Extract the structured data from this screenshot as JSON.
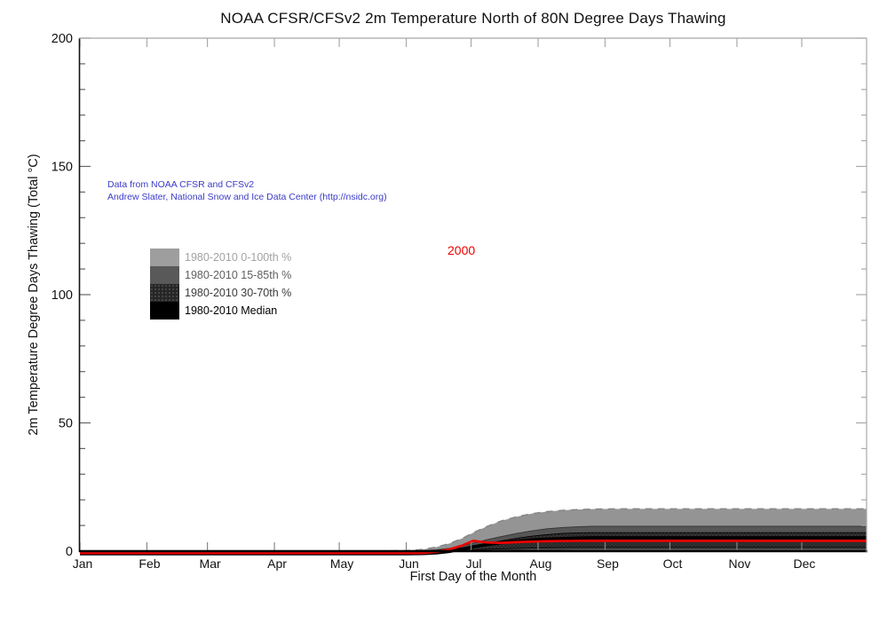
{
  "page": {
    "background": "#ffffff"
  },
  "annotations": {
    "source_line1": "Data from NOAA CFSR and CFSv2",
    "source_line2": "Andrew Slater, National Snow and Ice Data Center (http://nsidc.org)",
    "source_color": "#3b3bc8",
    "year_label": "2000",
    "year_color": "#ee0000"
  },
  "legend": {
    "entries": [
      {
        "label": "1980-2010 0-100th %",
        "swatch_color": "#9e9e9e",
        "text_color": "#a2a2a2",
        "pattern": "solid"
      },
      {
        "label": "1980-2010 15-85th %",
        "swatch_color": "#595959",
        "text_color": "#606060",
        "pattern": "solid"
      },
      {
        "label": "1980-2010 30-70th %",
        "swatch_color": "#262626",
        "text_color": "#3a3a3a",
        "pattern": "stipple"
      },
      {
        "label": "1980-2010 Median",
        "swatch_color": "#000000",
        "text_color": "#000000",
        "pattern": "solid"
      }
    ]
  },
  "chart_data": {
    "type": "area",
    "title": "NOAA CFSR/CFSv2 2m Temperature North of 80N Degree Days Thawing",
    "xlabel": "First Day of the Month",
    "ylabel": "2m Temperature Degree Days Thawing (Total °C)",
    "xlim_days": [
      1,
      365
    ],
    "ylim": [
      0,
      200
    ],
    "y_ticks": [
      0,
      50,
      100,
      150,
      200
    ],
    "y_minor_step": 10,
    "x_ticks": [
      {
        "day": 1,
        "label": "Jan"
      },
      {
        "day": 32,
        "label": "Feb"
      },
      {
        "day": 60,
        "label": "Mar"
      },
      {
        "day": 91,
        "label": "Apr"
      },
      {
        "day": 121,
        "label": "May"
      },
      {
        "day": 152,
        "label": "Jun"
      },
      {
        "day": 182,
        "label": "Jul"
      },
      {
        "day": 213,
        "label": "Aug"
      },
      {
        "day": 244,
        "label": "Sep"
      },
      {
        "day": 274,
        "label": "Oct"
      },
      {
        "day": 305,
        "label": "Nov"
      },
      {
        "day": 335,
        "label": "Dec"
      }
    ],
    "days": [
      1,
      60,
      121,
      152,
      160,
      166,
      172,
      178,
      183,
      189,
      196,
      203,
      210,
      217,
      224,
      231,
      238,
      250,
      274,
      305,
      335,
      365
    ],
    "bands": [
      {
        "name": "1980-2010 0-100th percentile",
        "fill": "#949494",
        "edge": "dashed",
        "upper": [
          0,
          0,
          0,
          0.2,
          0.7,
          1.6,
          3.0,
          5.0,
          7.2,
          9.5,
          11.8,
          13.4,
          14.6,
          15.4,
          15.9,
          16.2,
          16.4,
          16.5,
          16.5,
          16.5,
          16.5,
          16.5
        ],
        "lower": [
          0,
          0,
          0,
          0,
          0,
          0,
          0,
          0.05,
          0.05,
          0.1,
          0.1,
          0.1,
          0.1,
          0.15,
          0.15,
          0.15,
          0.15,
          0.15,
          0.15,
          0.15,
          0.15,
          0.15
        ]
      },
      {
        "name": "1980-2010 15-85th percentile",
        "fill": "#565656",
        "edge": "solid",
        "upper": [
          0,
          0,
          0,
          0,
          0.2,
          0.5,
          1.1,
          2.0,
          3.1,
          4.4,
          5.7,
          6.9,
          7.9,
          8.7,
          9.2,
          9.5,
          9.7,
          9.7,
          9.7,
          9.7,
          9.7,
          9.7
        ],
        "lower": [
          0,
          0,
          0,
          0,
          0,
          0,
          0,
          0.1,
          0.2,
          0.3,
          0.4,
          0.5,
          0.55,
          0.6,
          0.65,
          0.7,
          0.7,
          0.7,
          0.7,
          0.7,
          0.7,
          0.7
        ]
      },
      {
        "name": "1980-2010 30-70th percentile",
        "fill": "stipple",
        "edge": "solid",
        "upper": [
          0,
          0,
          0,
          0,
          0.1,
          0.3,
          0.7,
          1.3,
          2.1,
          3.0,
          4.0,
          5.0,
          5.8,
          6.4,
          6.9,
          7.1,
          7.2,
          7.2,
          7.2,
          7.2,
          7.2,
          7.2
        ],
        "lower": [
          0,
          0,
          0,
          0,
          0,
          0,
          0.1,
          0.25,
          0.45,
          0.7,
          0.9,
          1.05,
          1.2,
          1.3,
          1.35,
          1.4,
          1.4,
          1.4,
          1.4,
          1.4,
          1.4,
          1.4
        ]
      }
    ],
    "series": [
      {
        "name": "1980-2010 Median",
        "color": "#000000",
        "width": 3.6,
        "values": [
          0,
          0,
          0,
          0,
          0.05,
          0.2,
          0.5,
          1.0,
          1.7,
          2.5,
          3.3,
          3.9,
          4.4,
          4.7,
          4.9,
          5.1,
          5.2,
          5.2,
          5.2,
          5.2,
          5.2,
          5.2
        ]
      },
      {
        "name": "2000",
        "color": "#ee0000",
        "width": 2.7,
        "values": [
          0,
          0,
          0,
          0,
          0.05,
          0.3,
          0.9,
          2.2,
          4.0,
          3.4,
          3.2,
          3.5,
          3.7,
          3.85,
          3.95,
          4.0,
          4.0,
          4.0,
          4.0,
          4.0,
          4.0,
          4.0
        ]
      }
    ]
  }
}
